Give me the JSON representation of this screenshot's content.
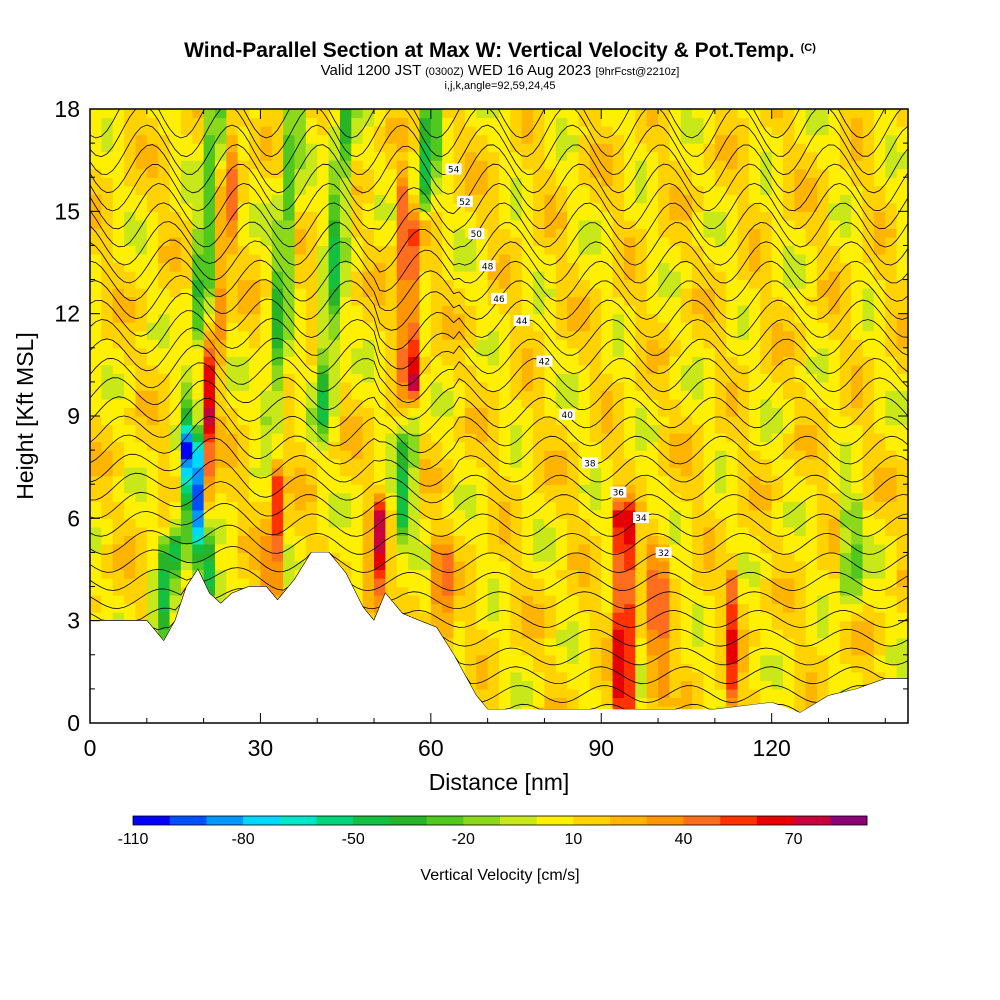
{
  "title": {
    "main": "Wind-Parallel Section at Max W: Vertical Velocity & Pot.Temp.",
    "copyright": "(C)",
    "valid_prefix": "Valid 1200 JST",
    "valid_zulu": "(0300Z)",
    "valid_date": "WED 16 Aug 2023",
    "forecast": "[9hrFcst@2210z]",
    "indices": "i,j,k,angle=92,59,24,45"
  },
  "chart_data": {
    "type": "heatmap",
    "xlabel": "Distance [nm]",
    "ylabel": "Height [Kft MSL]",
    "xlim": [
      0,
      144
    ],
    "ylim": [
      0,
      18
    ],
    "x_ticks": [
      "0",
      "30",
      "60",
      "90",
      "120"
    ],
    "x_tick_values": [
      0,
      30,
      60,
      90,
      120
    ],
    "y_ticks": [
      "0",
      "3",
      "6",
      "9",
      "12",
      "15",
      "18"
    ],
    "y_tick_values": [
      0,
      3,
      6,
      9,
      12,
      15,
      18
    ],
    "colorbar": {
      "title": "Vertical Velocity [cm/s]",
      "labels": [
        "-110",
        "-80",
        "-50",
        "-20",
        "10",
        "40",
        "70"
      ],
      "label_values": [
        -110,
        -80,
        -50,
        -20,
        10,
        40,
        70
      ],
      "min": -110,
      "max": 90,
      "step": 10,
      "colors": [
        "#0000ff",
        "#0050ff",
        "#0096ff",
        "#00d8ff",
        "#00e6c8",
        "#00d47a",
        "#14c040",
        "#28b428",
        "#50c81e",
        "#8cd81a",
        "#c8e81a",
        "#fff000",
        "#ffd200",
        "#ffb400",
        "#ff9600",
        "#ff6e1e",
        "#ff3200",
        "#e60000",
        "#c8003c",
        "#8c0078"
      ]
    },
    "background_w_cm_s": 10,
    "updraft_bands": [
      {
        "x_top": 20,
        "y_top": 10.5,
        "x_bottom": 21,
        "y_bottom": 4,
        "w_cm_s": 45
      },
      {
        "x_top": 26,
        "y_top": 18,
        "x_bottom": 21,
        "y_bottom": 9,
        "w_cm_s": 30
      },
      {
        "x_top": 33,
        "y_top": 7,
        "x_bottom": 32,
        "y_bottom": 4,
        "w_cm_s": 50
      },
      {
        "x_top": 58,
        "y_top": 14.5,
        "x_bottom": 57,
        "y_bottom": 10,
        "w_cm_s": 85
      },
      {
        "x_top": 55,
        "y_top": 15.5,
        "x_bottom": 56,
        "y_bottom": 9,
        "w_cm_s": 40
      },
      {
        "x_top": 51,
        "y_top": 6,
        "x_bottom": 50,
        "y_bottom": 3.5,
        "w_cm_s": 55
      },
      {
        "x_top": 94,
        "y_top": 6,
        "x_bottom": 94,
        "y_bottom": 0.5,
        "w_cm_s": 85
      },
      {
        "x_top": 100,
        "y_top": 5,
        "x_bottom": 100,
        "y_bottom": 1,
        "w_cm_s": 45
      },
      {
        "x_top": 113,
        "y_top": 4,
        "x_bottom": 113,
        "y_bottom": 1,
        "w_cm_s": 40
      },
      {
        "x_top": 62,
        "y_top": 5,
        "x_bottom": 62,
        "y_bottom": 2.5,
        "w_cm_s": 40
      }
    ],
    "downdraft_bands": [
      {
        "x_top": 18,
        "y_top": 8,
        "x_bottom": 21,
        "y_bottom": 4,
        "w_cm_s": -105
      },
      {
        "x_top": 22,
        "y_top": 18,
        "x_bottom": 16,
        "y_bottom": 5,
        "w_cm_s": -40
      },
      {
        "x_top": 36,
        "y_top": 18,
        "x_bottom": 32,
        "y_bottom": 9,
        "w_cm_s": -40
      },
      {
        "x_top": 45,
        "y_top": 18,
        "x_bottom": 41,
        "y_bottom": 9,
        "w_cm_s": -45
      },
      {
        "x_top": 60,
        "y_top": 18,
        "x_bottom": 55,
        "y_bottom": 6,
        "w_cm_s": -50
      },
      {
        "x_top": 14,
        "y_top": 5,
        "x_bottom": 12,
        "y_bottom": 2,
        "w_cm_s": -45
      },
      {
        "x_top": 134,
        "y_top": 6,
        "x_bottom": 134,
        "y_bottom": 4,
        "w_cm_s": -40
      }
    ],
    "terrain_profile": {
      "x": [
        0,
        10,
        13,
        15,
        17,
        19,
        21,
        23,
        25,
        28,
        31,
        33,
        36,
        39,
        42,
        45,
        48,
        50,
        52,
        55,
        58,
        61,
        64,
        66,
        68,
        70,
        80,
        90,
        100,
        110,
        120,
        125,
        128,
        130,
        135,
        140,
        144
      ],
      "y": [
        3.0,
        3.0,
        2.4,
        3.0,
        4.0,
        4.5,
        3.8,
        3.5,
        3.8,
        4.0,
        4.0,
        3.6,
        4.2,
        5.0,
        5.0,
        4.4,
        3.4,
        3.0,
        3.8,
        3.2,
        3.0,
        2.8,
        2.0,
        1.4,
        0.8,
        0.4,
        0.4,
        0.4,
        0.4,
        0.4,
        0.6,
        0.3,
        0.6,
        0.8,
        1.0,
        1.3,
        1.3
      ]
    },
    "theta_contour_labels": [
      "32",
      "34",
      "36",
      "38",
      "40",
      "42",
      "44",
      "46",
      "48",
      "50",
      "52",
      "54"
    ],
    "theta_labeled_values": [
      32,
      34,
      36,
      38,
      40,
      42,
      44,
      46,
      48,
      50,
      52,
      54
    ],
    "theta_min_level": 24,
    "theta_max_level": 56,
    "theta_step": 1
  }
}
